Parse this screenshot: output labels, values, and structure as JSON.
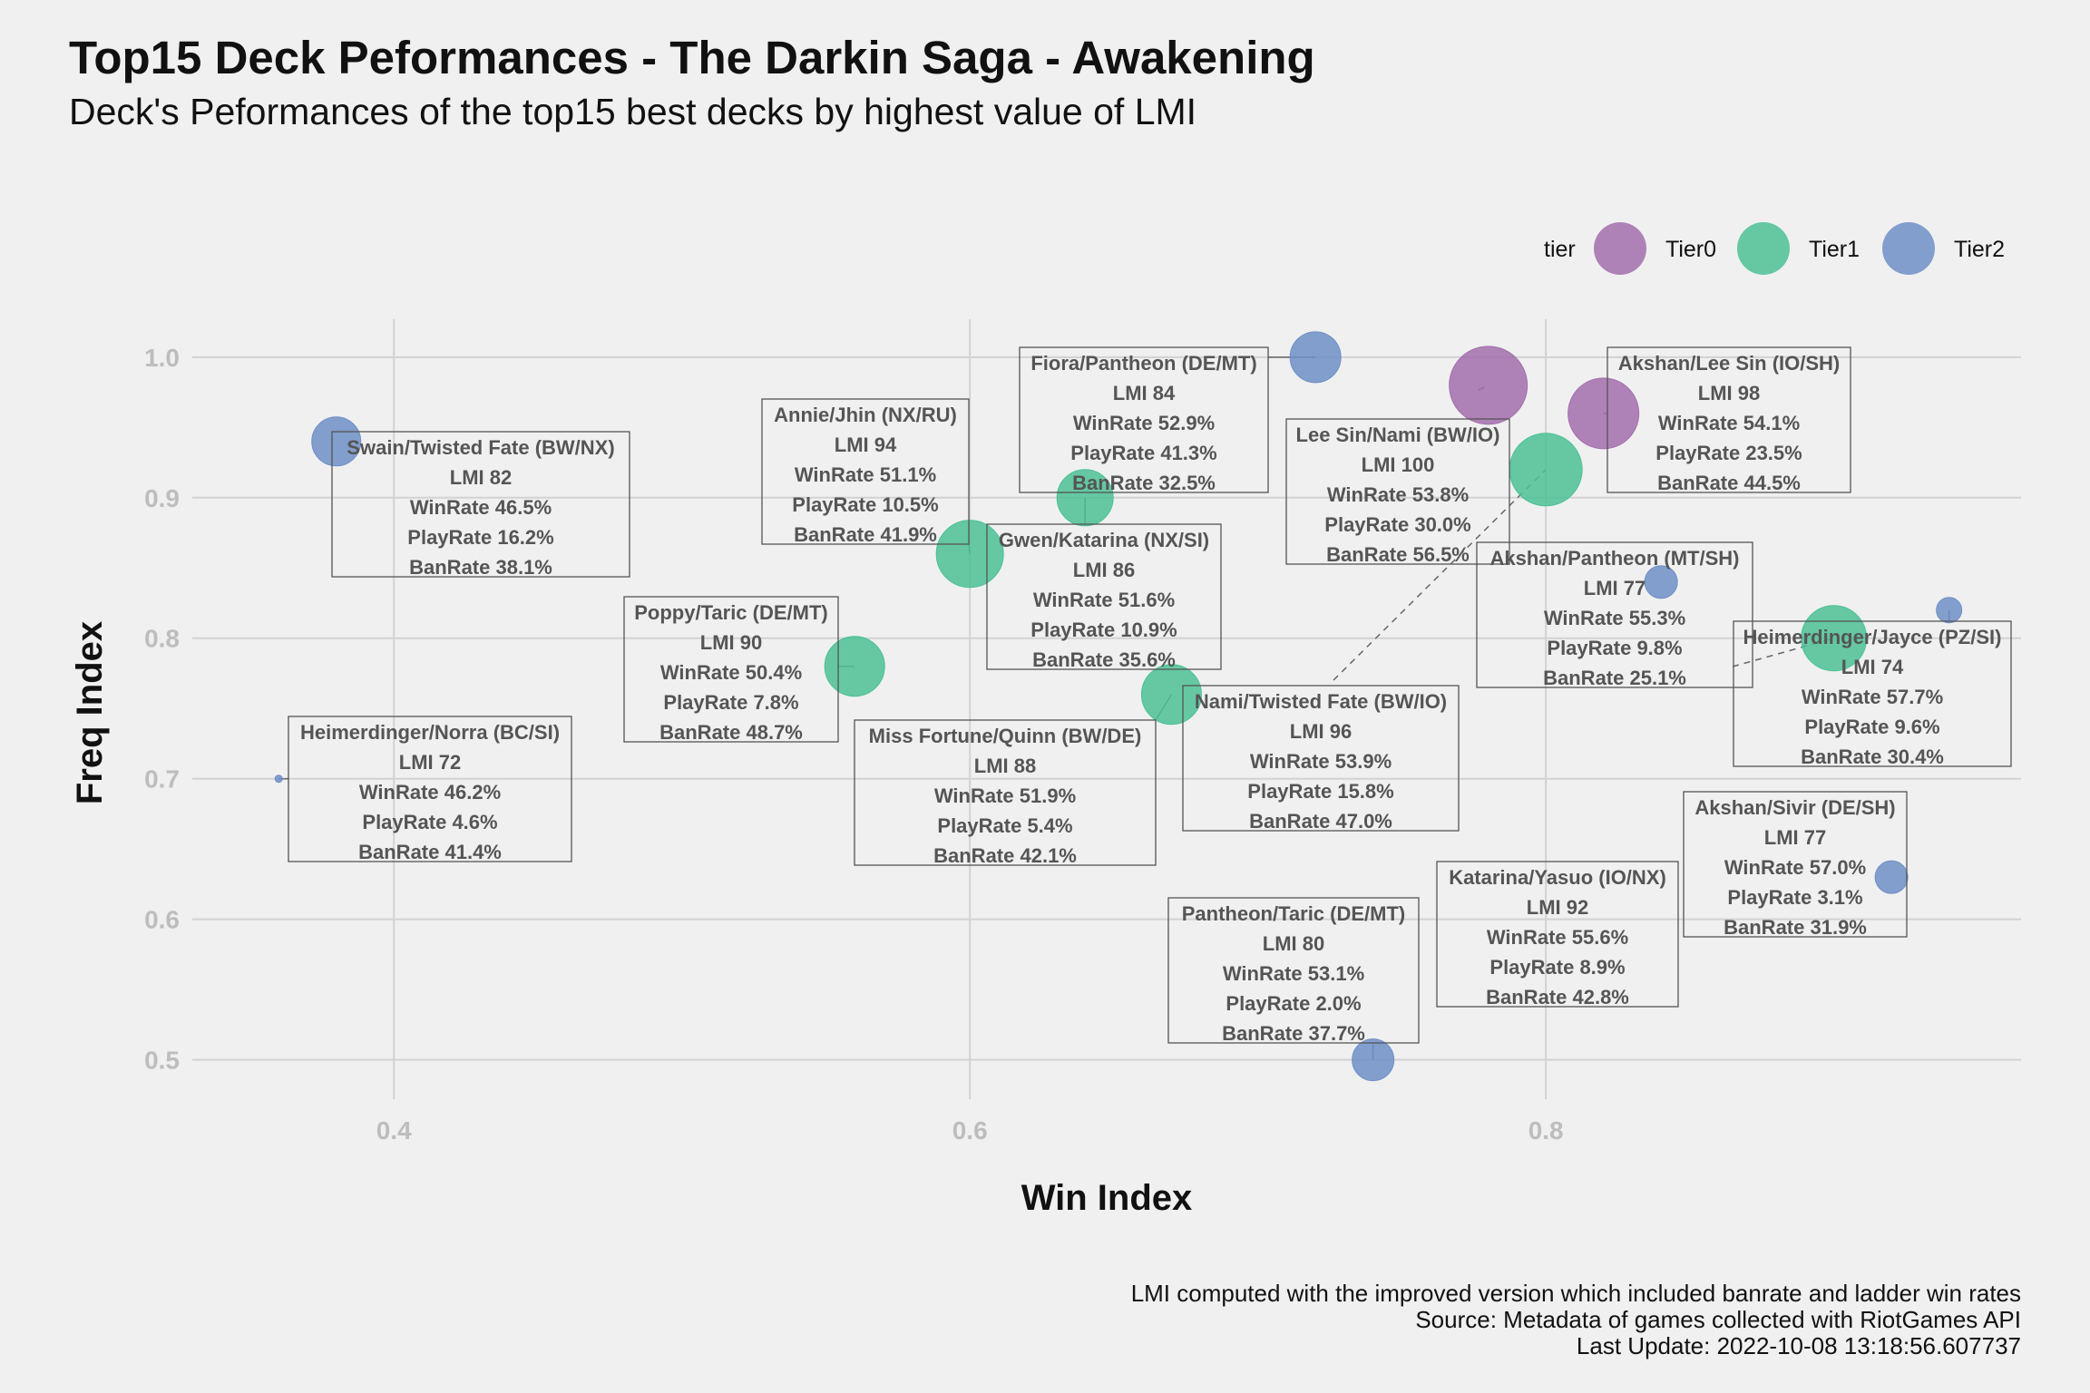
{
  "header": {
    "title": "Top15 Deck Peformances - The Darkin Saga - Awakening",
    "subtitle": "Deck's Peformances of the top15 best decks by highest value of LMI"
  },
  "caption": {
    "line1": "LMI computed with the improved version which included banrate and ladder win rates",
    "line2": "Source: Metadata of games collected with RiotGames API",
    "line3": "Last Update: 2022-10-08 13:18:56.607737"
  },
  "chart_data": {
    "type": "scatter",
    "xlabel": "Win Index",
    "ylabel": "Freq Index",
    "xlim": [
      0.33,
      0.965
    ],
    "ylim": [
      0.472,
      1.027
    ],
    "x_ticks": [
      "0.4",
      "0.6",
      "0.8"
    ],
    "y_ticks": [
      "0.5",
      "0.6",
      "0.7",
      "0.8",
      "0.9",
      "1.0"
    ],
    "grid": true,
    "legend": {
      "title": "tier",
      "position": "top-right",
      "entries": [
        {
          "name": "Tier0",
          "color": "#a36fad"
        },
        {
          "name": "Tier1",
          "color": "#4cc195"
        },
        {
          "name": "Tier2",
          "color": "#6f8fc7"
        }
      ]
    },
    "points": [
      {
        "deck": "Lee Sin/Nami (BW/IO)",
        "tier": "Tier1",
        "x": 0.8,
        "y": 0.92,
        "lmi": "LMI 100",
        "winrate": "WinRate 53.8%",
        "playrate": "PlayRate 30.0%",
        "banrate": "BanRate 56.5%"
      },
      {
        "deck": "Akshan/Lee Sin (IO/SH)",
        "tier": "Tier0",
        "x": 0.82,
        "y": 0.96,
        "lmi": "LMI 98",
        "winrate": "WinRate 54.1%",
        "playrate": "PlayRate 23.5%",
        "banrate": "BanRate 44.5%"
      },
      {
        "deck": "Nami/Twisted Fate (BW/IO)",
        "tier": "Tier0",
        "x": 0.78,
        "y": 0.98,
        "lmi": "LMI 96",
        "winrate": "WinRate 53.9%",
        "playrate": "PlayRate 15.8%",
        "banrate": "BanRate 47.0%"
      },
      {
        "deck": "Annie/Jhin (NX/RU)",
        "tier": "Tier1",
        "x": 0.6,
        "y": 0.86,
        "lmi": "LMI 94",
        "winrate": "WinRate 51.1%",
        "playrate": "PlayRate 10.5%",
        "banrate": "BanRate 41.9%"
      },
      {
        "deck": "Katarina/Yasuo (IO/NX)",
        "tier": "Tier1",
        "x": 0.9,
        "y": 0.8,
        "lmi": "LMI 92",
        "winrate": "WinRate 55.6%",
        "playrate": "PlayRate 8.9%",
        "banrate": "BanRate 42.8%"
      },
      {
        "deck": "Poppy/Taric (DE/MT)",
        "tier": "Tier1",
        "x": 0.56,
        "y": 0.78,
        "lmi": "LMI 90",
        "winrate": "WinRate 50.4%",
        "playrate": "PlayRate 7.8%",
        "banrate": "BanRate 48.7%"
      },
      {
        "deck": "Miss Fortune/Quinn (BW/DE)",
        "tier": "Tier1",
        "x": 0.67,
        "y": 0.76,
        "lmi": "LMI 88",
        "winrate": "WinRate 51.9%",
        "playrate": "PlayRate 5.4%",
        "banrate": "BanRate 42.1%"
      },
      {
        "deck": "Gwen/Katarina (NX/SI)",
        "tier": "Tier1",
        "x": 0.64,
        "y": 0.9,
        "lmi": "LMI 86",
        "winrate": "WinRate 51.6%",
        "playrate": "PlayRate 10.9%",
        "banrate": "BanRate 35.6%"
      },
      {
        "deck": "Fiora/Pantheon (DE/MT)",
        "tier": "Tier2",
        "x": 0.72,
        "y": 1.0,
        "lmi": "LMI 84",
        "winrate": "WinRate 52.9%",
        "playrate": "PlayRate 41.3%",
        "banrate": "BanRate 32.5%"
      },
      {
        "deck": "Swain/Twisted Fate (BW/NX)",
        "tier": "Tier2",
        "x": 0.38,
        "y": 0.94,
        "lmi": "LMI 82",
        "winrate": "WinRate 46.5%",
        "playrate": "PlayRate 16.2%",
        "banrate": "BanRate 38.1%"
      },
      {
        "deck": "Pantheon/Taric (DE/MT)",
        "tier": "Tier2",
        "x": 0.74,
        "y": 0.5,
        "lmi": "LMI 80",
        "winrate": "WinRate 53.1%",
        "playrate": "PlayRate 2.0%",
        "banrate": "BanRate 37.7%"
      },
      {
        "deck": "Akshan/Pantheon (MT/SH)",
        "tier": "Tier2",
        "x": 0.84,
        "y": 0.84,
        "lmi": "LMI 77",
        "winrate": "WinRate 55.3%",
        "playrate": "PlayRate 9.8%",
        "banrate": "BanRate 25.1%"
      },
      {
        "deck": "Akshan/Sivir (DE/SH)",
        "tier": "Tier2",
        "x": 0.92,
        "y": 0.63,
        "lmi": "LMI 77",
        "winrate": "WinRate 57.0%",
        "playrate": "PlayRate 3.1%",
        "banrate": "BanRate 31.9%"
      },
      {
        "deck": "Heimerdinger/Jayce (PZ/SI)",
        "tier": "Tier2",
        "x": 0.94,
        "y": 0.82,
        "lmi": "LMI 74",
        "winrate": "WinRate 57.7%",
        "playrate": "PlayRate 9.6%",
        "banrate": "BanRate 30.4%"
      },
      {
        "deck": "Heimerdinger/Norra (BC/SI)",
        "tier": "Tier2",
        "x": 0.36,
        "y": 0.7,
        "lmi": "LMI 72",
        "winrate": "WinRate 46.2%",
        "playrate": "PlayRate 4.6%",
        "banrate": "BanRate 41.4%"
      }
    ]
  }
}
